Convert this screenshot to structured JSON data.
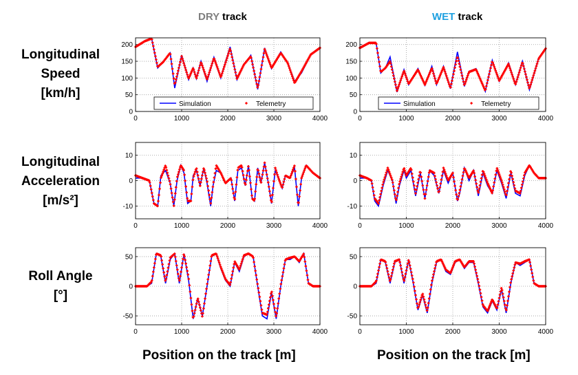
{
  "columns": [
    {
      "key": "dry",
      "prefix": "DRY",
      "suffix": " track",
      "color": "#7f7f7f"
    },
    {
      "key": "wet",
      "prefix": "WET",
      "suffix": " track",
      "color": "#1ea0e0"
    }
  ],
  "rows": [
    {
      "key": "speed",
      "label_lines": [
        "Longitudinal",
        "Speed",
        "[km/h]"
      ]
    },
    {
      "key": "accel",
      "label_lines": [
        "Longitudinal",
        "Acceleration",
        "[m/s²]"
      ]
    },
    {
      "key": "roll",
      "label_lines": [
        "Roll Angle",
        "[°]"
      ]
    }
  ],
  "xlabel": "Position on the track [m]",
  "colors": {
    "simulation": "#0000ff",
    "telemetry": "#ff0000",
    "grid": "#999999"
  },
  "chart_data": [
    {
      "type": "line",
      "id": "speed-dry",
      "title": "",
      "xlabel": "",
      "ylabel": "",
      "xlim": [
        0,
        4000
      ],
      "ylim": [
        0,
        220
      ],
      "xticks": [
        0,
        1000,
        2000,
        3000,
        4000
      ],
      "yticks": [
        0,
        50,
        100,
        150,
        200
      ],
      "grid": true,
      "legend": {
        "placement": "bottom",
        "entries": [
          "Simulation",
          "Telemetry"
        ]
      },
      "x": [
        0,
        200,
        350,
        480,
        600,
        750,
        850,
        1000,
        1150,
        1250,
        1320,
        1420,
        1550,
        1700,
        1850,
        2050,
        2200,
        2350,
        2500,
        2650,
        2800,
        2950,
        3150,
        3300,
        3450,
        3600,
        3800,
        4000
      ],
      "series": [
        {
          "name": "Simulation",
          "values": [
            193,
            210,
            218,
            130,
            148,
            175,
            70,
            168,
            95,
            130,
            98,
            150,
            90,
            162,
            100,
            193,
            95,
            140,
            168,
            66,
            190,
            128,
            178,
            145,
            90,
            115,
            170,
            190
          ]
        },
        {
          "name": "Telemetry",
          "values": [
            193,
            210,
            218,
            133,
            148,
            175,
            80,
            165,
            98,
            130,
            98,
            148,
            95,
            160,
            102,
            188,
            98,
            140,
            165,
            70,
            186,
            130,
            175,
            145,
            85,
            120,
            170,
            190
          ]
        }
      ]
    },
    {
      "type": "line",
      "id": "speed-wet",
      "title": "",
      "xlabel": "",
      "ylabel": "",
      "xlim": [
        0,
        4000
      ],
      "ylim": [
        0,
        220
      ],
      "xticks": [
        0,
        1000,
        2000,
        3000,
        4000
      ],
      "yticks": [
        0,
        50,
        100,
        150,
        200
      ],
      "grid": true,
      "legend": {
        "placement": "bottom",
        "entries": [
          "Simulation",
          "Telemetry"
        ]
      },
      "x": [
        0,
        200,
        350,
        450,
        550,
        650,
        800,
        950,
        1050,
        1250,
        1400,
        1550,
        1650,
        1800,
        1950,
        2100,
        2250,
        2350,
        2500,
        2700,
        2850,
        3000,
        3200,
        3350,
        3500,
        3650,
        3850,
        4000
      ],
      "series": [
        {
          "name": "Simulation",
          "values": [
            190,
            205,
            205,
            115,
            130,
            163,
            58,
            125,
            80,
            128,
            78,
            135,
            80,
            135,
            68,
            178,
            75,
            120,
            128,
            60,
            153,
            90,
            145,
            80,
            150,
            65,
            160,
            188
          ]
        },
        {
          "name": "Telemetry",
          "values": [
            190,
            205,
            205,
            118,
            130,
            150,
            62,
            122,
            82,
            125,
            80,
            130,
            82,
            132,
            70,
            165,
            78,
            118,
            126,
            62,
            150,
            92,
            142,
            80,
            148,
            68,
            158,
            188
          ]
        }
      ]
    },
    {
      "type": "line",
      "id": "accel-dry",
      "title": "",
      "xlabel": "",
      "ylabel": "",
      "xlim": [
        0,
        4000
      ],
      "ylim": [
        -15,
        15
      ],
      "xticks": [
        0,
        1000,
        2000,
        3000,
        4000
      ],
      "yticks": [
        -10,
        0,
        10
      ],
      "grid": true,
      "x": [
        0,
        150,
        300,
        400,
        480,
        550,
        650,
        750,
        830,
        900,
        980,
        1050,
        1130,
        1200,
        1250,
        1320,
        1400,
        1480,
        1550,
        1630,
        1680,
        1750,
        1850,
        1950,
        2070,
        2150,
        2220,
        2300,
        2380,
        2450,
        2530,
        2580,
        2650,
        2720,
        2800,
        2880,
        2950,
        3030,
        3100,
        3180,
        3250,
        3350,
        3450,
        3530,
        3600,
        3700,
        3850,
        4000
      ],
      "series": [
        {
          "name": "Simulation",
          "values": [
            1,
            1,
            0,
            -9,
            -10,
            2,
            4,
            -1,
            -10,
            0,
            6,
            3,
            -9,
            -8,
            2,
            4,
            -2,
            5,
            -1,
            -10,
            -2,
            4,
            3,
            -1,
            1,
            -8,
            4,
            5,
            -2,
            6,
            -7,
            -8,
            5,
            -1,
            7,
            -1,
            -9,
            4,
            1,
            -3,
            2,
            1,
            5,
            -10,
            1,
            6,
            3,
            1
          ]
        },
        {
          "name": "Telemetry",
          "values": [
            2,
            1,
            0,
            -9,
            -10,
            1,
            6,
            -1,
            -10,
            1,
            6,
            4,
            -8,
            -8,
            1,
            5,
            -2,
            5,
            0,
            -9,
            -2,
            6,
            3,
            -1,
            1,
            -8,
            5,
            6,
            -2,
            6,
            -7,
            -8,
            5,
            -1,
            7,
            -1,
            -9,
            5,
            1,
            -3,
            2,
            1,
            6,
            -10,
            1,
            6,
            3,
            1
          ]
        }
      ]
    },
    {
      "type": "line",
      "id": "accel-wet",
      "title": "",
      "xlabel": "",
      "ylabel": "",
      "xlim": [
        0,
        4000
      ],
      "ylim": [
        -15,
        15
      ],
      "xticks": [
        0,
        1000,
        2000,
        3000,
        4000
      ],
      "yticks": [
        -10,
        0,
        10
      ],
      "grid": true,
      "x": [
        0,
        150,
        250,
        320,
        400,
        500,
        600,
        700,
        780,
        850,
        950,
        1000,
        1100,
        1200,
        1300,
        1400,
        1500,
        1600,
        1700,
        1800,
        1900,
        2000,
        2100,
        2150,
        2250,
        2350,
        2450,
        2550,
        2650,
        2750,
        2850,
        2950,
        3050,
        3150,
        3250,
        3350,
        3450,
        3550,
        3650,
        3750,
        3850,
        4000
      ],
      "series": [
        {
          "name": "Simulation",
          "values": [
            1,
            1,
            0,
            -8,
            -10,
            -2,
            4,
            0,
            -9,
            -2,
            4,
            1,
            4,
            -6,
            3,
            -7,
            4,
            2,
            -5,
            4,
            -1,
            3,
            -8,
            -5,
            5,
            0,
            4,
            -6,
            3,
            -2,
            -5,
            4,
            -1,
            -7,
            3,
            -5,
            -6,
            2,
            6,
            3,
            1,
            1
          ]
        },
        {
          "name": "Telemetry",
          "values": [
            2,
            1,
            0,
            -7,
            -9,
            -1,
            5,
            0,
            -8,
            -1,
            5,
            2,
            5,
            -5,
            4,
            -7,
            4,
            3,
            -5,
            5,
            0,
            3,
            -8,
            -4,
            5,
            1,
            4,
            -5,
            4,
            -1,
            -5,
            5,
            0,
            -6,
            4,
            -4,
            -5,
            3,
            6,
            3,
            1,
            1
          ]
        }
      ]
    },
    {
      "type": "line",
      "id": "roll-dry",
      "title": "",
      "xlabel": "",
      "ylabel": "",
      "xlim": [
        0,
        4000
      ],
      "ylim": [
        -65,
        65
      ],
      "xticks": [
        0,
        1000,
        2000,
        3000,
        4000
      ],
      "yticks": [
        -50,
        0,
        50
      ],
      "grid": true,
      "x": [
        0,
        250,
        350,
        450,
        550,
        650,
        750,
        850,
        950,
        1050,
        1150,
        1250,
        1350,
        1450,
        1550,
        1650,
        1750,
        1850,
        1950,
        2050,
        2150,
        2250,
        2350,
        2450,
        2550,
        2650,
        2750,
        2850,
        2950,
        3050,
        3150,
        3250,
        3350,
        3450,
        3550,
        3650,
        3750,
        3850,
        4000
      ],
      "series": [
        {
          "name": "Simulation",
          "values": [
            0,
            0,
            5,
            55,
            50,
            5,
            45,
            55,
            5,
            55,
            10,
            -55,
            -20,
            -50,
            0,
            50,
            55,
            30,
            10,
            0,
            40,
            25,
            50,
            55,
            50,
            0,
            -50,
            -55,
            -10,
            -55,
            0,
            45,
            45,
            50,
            40,
            55,
            5,
            0,
            0
          ]
        },
        {
          "name": "Telemetry",
          "values": [
            0,
            0,
            8,
            55,
            52,
            8,
            48,
            55,
            8,
            55,
            15,
            -55,
            -20,
            -52,
            2,
            52,
            55,
            32,
            12,
            2,
            42,
            28,
            52,
            55,
            50,
            2,
            -45,
            -48,
            -8,
            -52,
            2,
            45,
            48,
            50,
            42,
            55,
            5,
            0,
            0
          ]
        }
      ]
    },
    {
      "type": "line",
      "id": "roll-wet",
      "title": "",
      "xlabel": "",
      "ylabel": "",
      "xlim": [
        0,
        4000
      ],
      "ylim": [
        -65,
        65
      ],
      "xticks": [
        0,
        1000,
        2000,
        3000,
        4000
      ],
      "yticks": [
        -50,
        0,
        50
      ],
      "grid": true,
      "x": [
        0,
        250,
        350,
        450,
        550,
        650,
        750,
        850,
        950,
        1050,
        1150,
        1250,
        1350,
        1450,
        1550,
        1650,
        1750,
        1850,
        1950,
        2050,
        2150,
        2250,
        2350,
        2450,
        2550,
        2650,
        2750,
        2850,
        2950,
        3050,
        3150,
        3250,
        3350,
        3450,
        3550,
        3650,
        3750,
        3850,
        4000
      ],
      "series": [
        {
          "name": "Simulation",
          "values": [
            0,
            0,
            5,
            45,
            40,
            5,
            40,
            45,
            5,
            45,
            5,
            -40,
            -15,
            -45,
            5,
            40,
            45,
            25,
            20,
            40,
            45,
            30,
            40,
            40,
            5,
            -35,
            -45,
            -25,
            -40,
            -5,
            -45,
            5,
            40,
            35,
            40,
            45,
            5,
            0,
            0
          ]
        },
        {
          "name": "Telemetry",
          "values": [
            0,
            0,
            8,
            45,
            42,
            8,
            42,
            45,
            8,
            45,
            8,
            -38,
            -12,
            -42,
            8,
            42,
            45,
            28,
            22,
            42,
            45,
            32,
            42,
            42,
            8,
            -32,
            -42,
            -22,
            -38,
            -2,
            -42,
            8,
            40,
            38,
            42,
            45,
            5,
            0,
            0
          ]
        }
      ]
    }
  ]
}
